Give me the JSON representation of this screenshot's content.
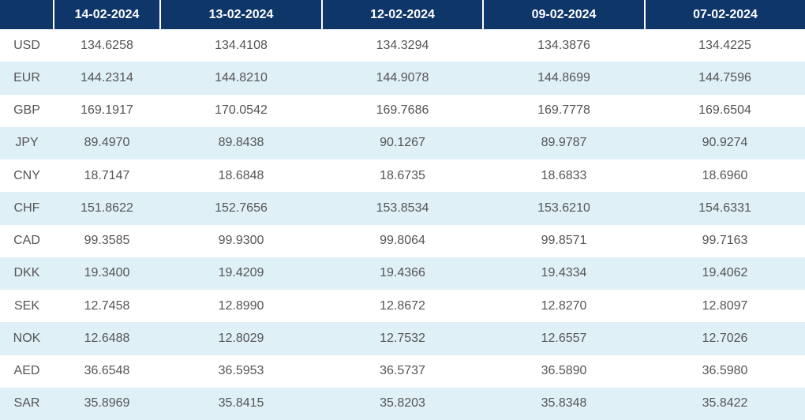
{
  "table": {
    "headers": [
      "14-02-2024",
      "13-02-2024",
      "12-02-2024",
      "09-02-2024",
      "07-02-2024"
    ],
    "rows": [
      [
        "USD",
        "134.6258",
        "134.4108",
        "134.3294",
        "134.3876",
        "134.4225"
      ],
      [
        "EUR",
        "144.2314",
        "144.8210",
        "144.9078",
        "144.8699",
        "144.7596"
      ],
      [
        "GBP",
        "169.1917",
        "170.0542",
        "169.7686",
        "169.7778",
        "169.6504"
      ],
      [
        "JPY",
        "89.4970",
        "89.8438",
        "90.1267",
        "89.9787",
        "90.9274"
      ],
      [
        "CNY",
        "18.7147",
        "18.6848",
        "18.6735",
        "18.6833",
        "18.6960"
      ],
      [
        "CHF",
        "151.8622",
        "152.7656",
        "153.8534",
        "153.6210",
        "154.6331"
      ],
      [
        "CAD",
        "99.3585",
        "99.9300",
        "99.8064",
        "99.8571",
        "99.7163"
      ],
      [
        "DKK",
        "19.3400",
        "19.4209",
        "19.4366",
        "19.4334",
        "19.4062"
      ],
      [
        "SEK",
        "12.7458",
        "12.8990",
        "12.8672",
        "12.8270",
        "12.8097"
      ],
      [
        "NOK",
        "12.6488",
        "12.8029",
        "12.7532",
        "12.6557",
        "12.7026"
      ],
      [
        "AED",
        "36.6548",
        "36.5953",
        "36.5737",
        "36.5890",
        "36.5980"
      ],
      [
        "SAR",
        "35.8969",
        "35.8415",
        "35.8203",
        "35.8348",
        "35.8422"
      ]
    ]
  }
}
